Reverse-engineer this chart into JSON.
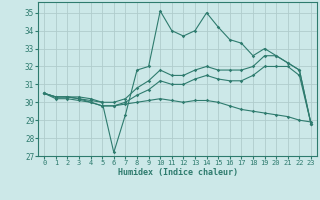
{
  "xlabel": "Humidex (Indice chaleur)",
  "xlim": [
    -0.5,
    23.5
  ],
  "ylim": [
    27,
    35.6
  ],
  "yticks": [
    27,
    28,
    29,
    30,
    31,
    32,
    33,
    34,
    35
  ],
  "xticks": [
    0,
    1,
    2,
    3,
    4,
    5,
    6,
    7,
    8,
    9,
    10,
    11,
    12,
    13,
    14,
    15,
    16,
    17,
    18,
    19,
    20,
    21,
    22,
    23
  ],
  "bg_color": "#cce8e8",
  "grid_color": "#b0cccc",
  "line_color": "#2e7b6e",
  "lines": [
    {
      "x": [
        0,
        1,
        2,
        3,
        4,
        5,
        6,
        7,
        8,
        9,
        10,
        11,
        12,
        13,
        14,
        15,
        16,
        17,
        18,
        19,
        20,
        21,
        22,
        23
      ],
      "y": [
        30.5,
        30.3,
        30.3,
        30.3,
        30.2,
        30.0,
        27.2,
        29.3,
        31.8,
        32.0,
        35.1,
        34.0,
        33.7,
        34.0,
        35.0,
        34.2,
        33.5,
        33.3,
        32.6,
        33.0,
        32.6,
        32.2,
        31.8,
        28.8
      ]
    },
    {
      "x": [
        0,
        1,
        2,
        3,
        4,
        5,
        6,
        7,
        8,
        9,
        10,
        11,
        12,
        13,
        14,
        15,
        16,
        17,
        18,
        19,
        20,
        21,
        22,
        23
      ],
      "y": [
        30.5,
        30.3,
        30.3,
        30.2,
        30.1,
        30.0,
        30.0,
        30.2,
        30.8,
        31.2,
        31.8,
        31.5,
        31.5,
        31.8,
        32.0,
        31.8,
        31.8,
        31.8,
        32.0,
        32.6,
        32.6,
        32.2,
        31.8,
        28.8
      ]
    },
    {
      "x": [
        0,
        1,
        2,
        3,
        4,
        5,
        6,
        7,
        8,
        9,
        10,
        11,
        12,
        13,
        14,
        15,
        16,
        17,
        18,
        19,
        20,
        21,
        22,
        23
      ],
      "y": [
        30.5,
        30.3,
        30.3,
        30.2,
        30.0,
        29.8,
        29.8,
        30.0,
        30.4,
        30.7,
        31.2,
        31.0,
        31.0,
        31.3,
        31.5,
        31.3,
        31.2,
        31.2,
        31.5,
        32.0,
        32.0,
        32.0,
        31.5,
        28.8
      ]
    },
    {
      "x": [
        0,
        1,
        2,
        3,
        4,
        5,
        6,
        7,
        8,
        9,
        10,
        11,
        12,
        13,
        14,
        15,
        16,
        17,
        18,
        19,
        20,
        21,
        22,
        23
      ],
      "y": [
        30.5,
        30.2,
        30.2,
        30.1,
        30.0,
        29.8,
        29.8,
        29.9,
        30.0,
        30.1,
        30.2,
        30.1,
        30.0,
        30.1,
        30.1,
        30.0,
        29.8,
        29.6,
        29.5,
        29.4,
        29.3,
        29.2,
        29.0,
        28.9
      ]
    }
  ]
}
